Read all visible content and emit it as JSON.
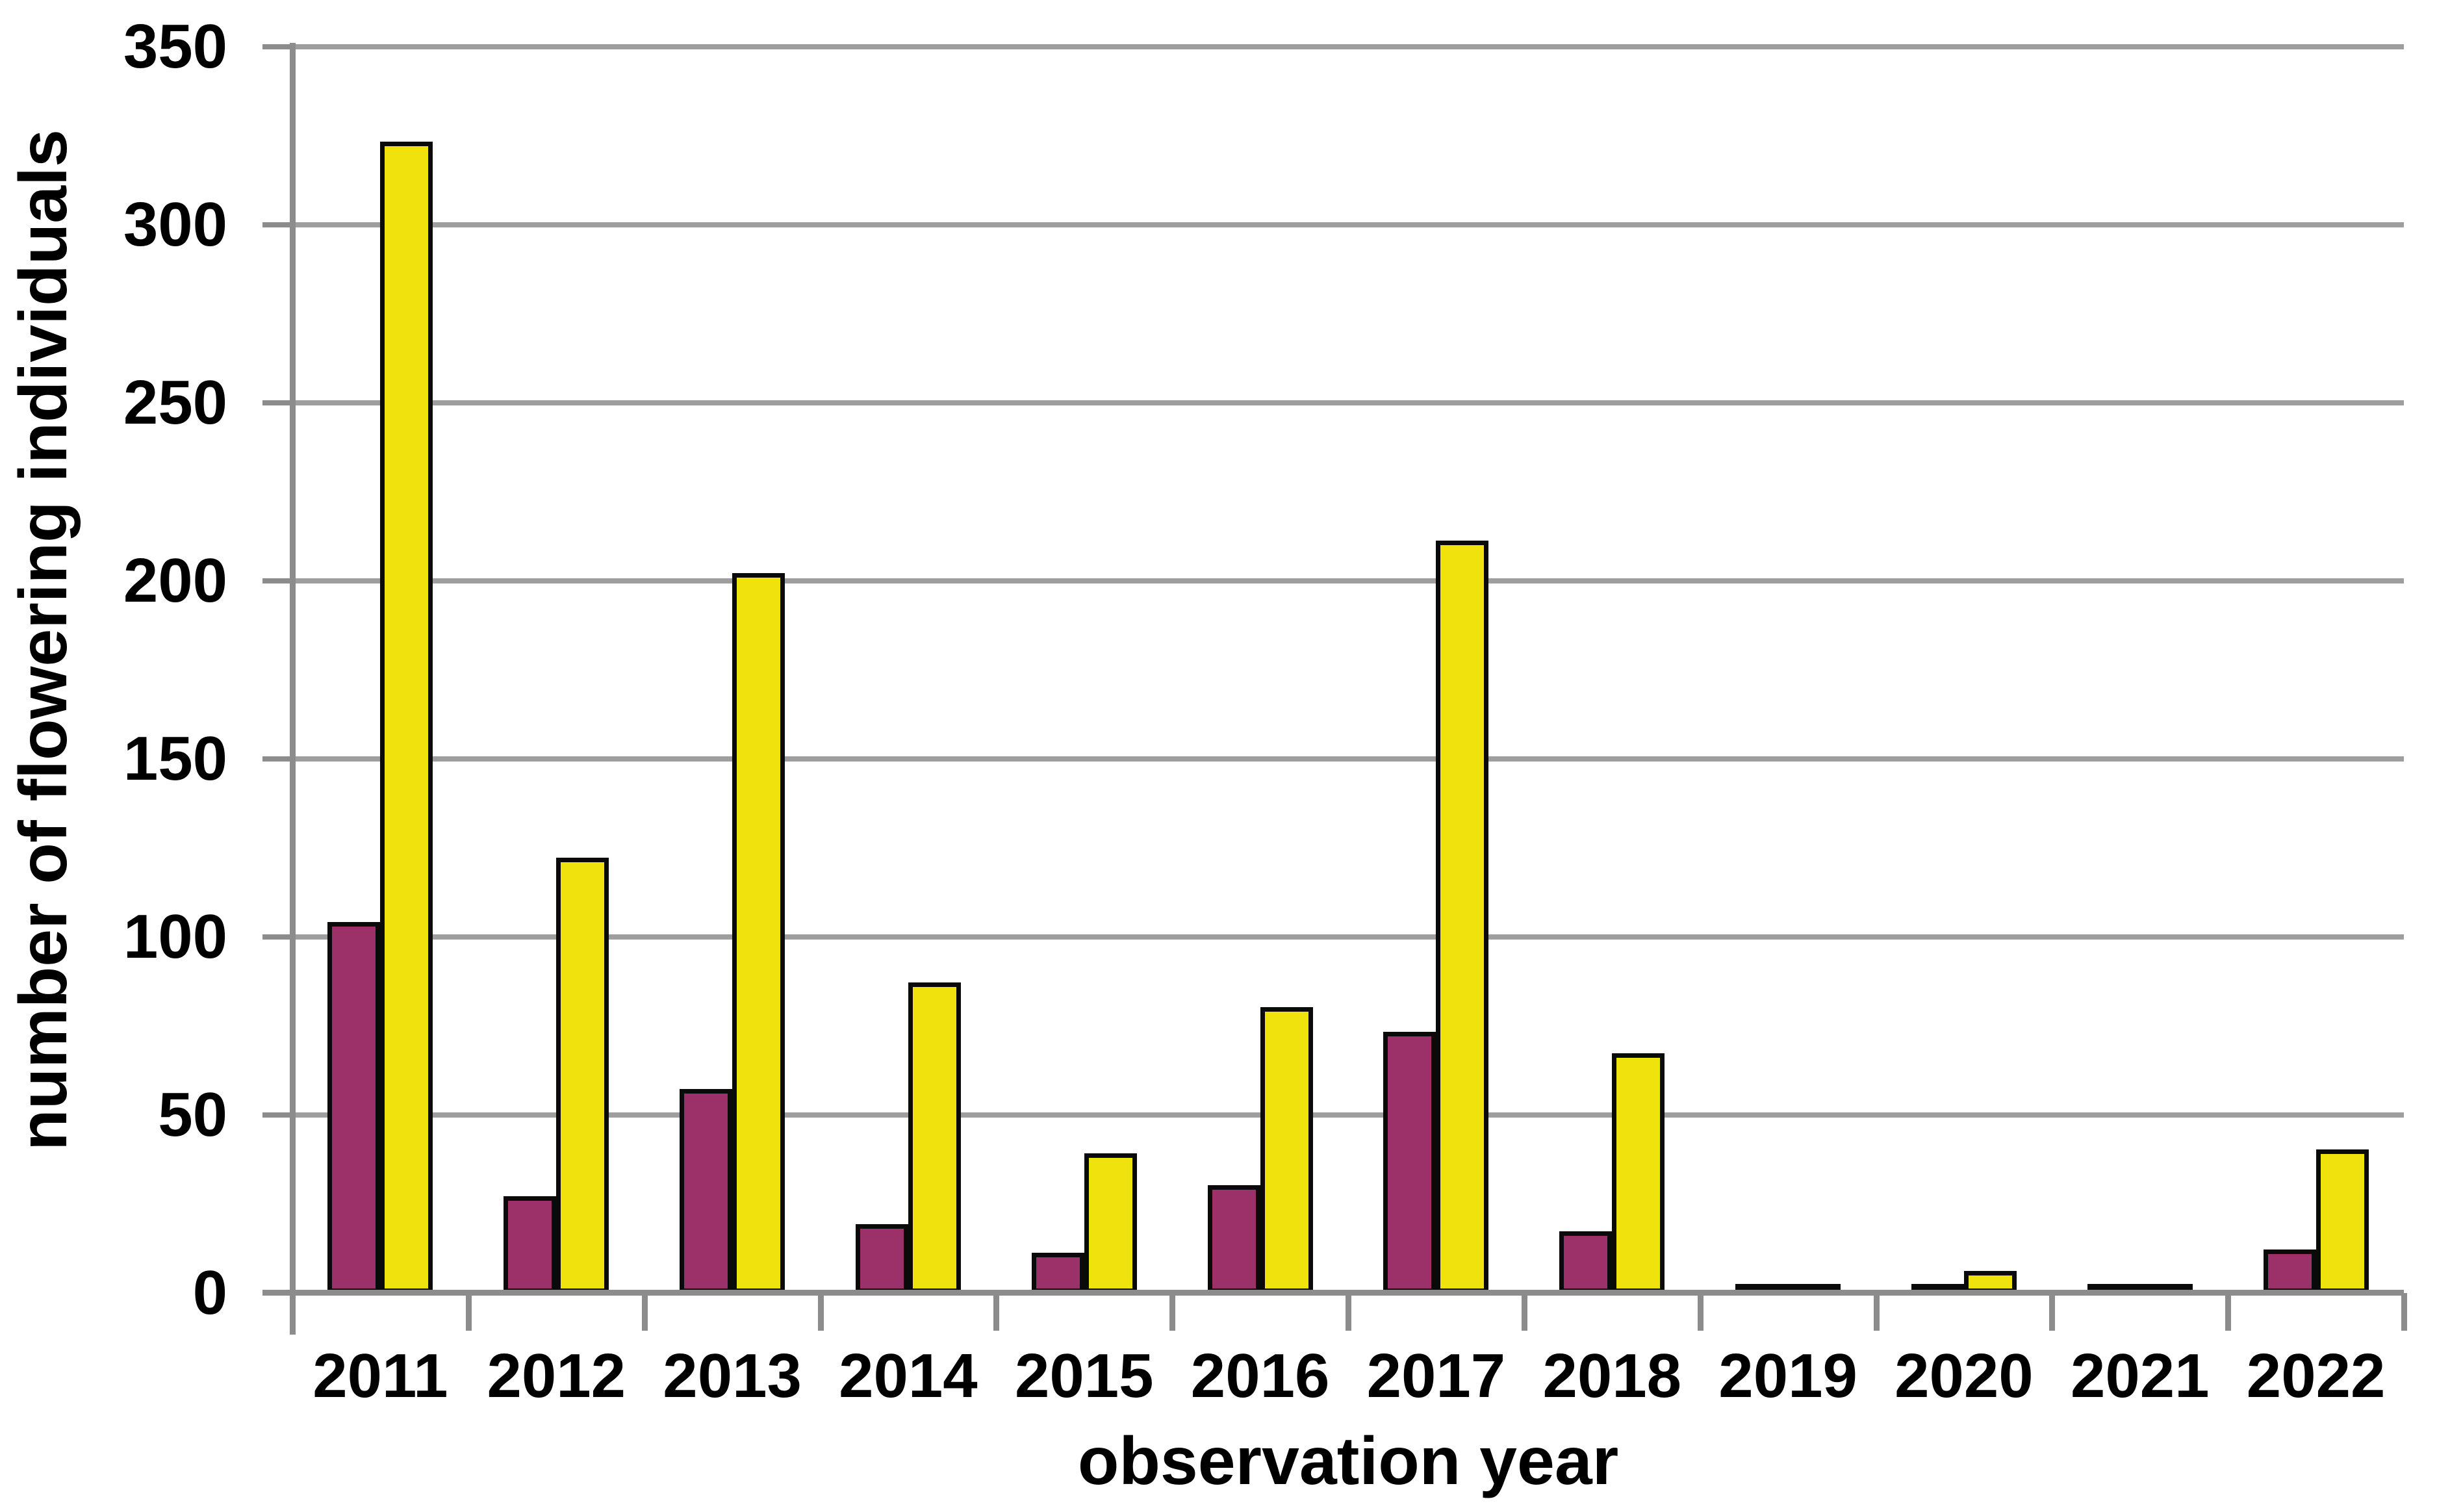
{
  "chart_data": {
    "type": "bar",
    "title": "",
    "xlabel": "observation year",
    "ylabel": "number of flowering individuals",
    "categories": [
      "2011",
      "2012",
      "2013",
      "2014",
      "2015",
      "2016",
      "2017",
      "2018",
      "2019",
      "2020",
      "2021",
      "2022"
    ],
    "series": [
      {
        "name": "maroon",
        "color": "#9C3169",
        "values": [
          103,
          26,
          56,
          18,
          10,
          29,
          72,
          16,
          1,
          1,
          1,
          11
        ]
      },
      {
        "name": "yellow",
        "color": "#EFE20D",
        "values": [
          322,
          121,
          201,
          86,
          38,
          79,
          210,
          66,
          1,
          5,
          1,
          39
        ]
      }
    ],
    "bar_border_color": "#0A0A0A",
    "ylim": [
      0,
      350
    ],
    "yticks": [
      0,
      50,
      100,
      150,
      200,
      250,
      300,
      350
    ],
    "grid": true,
    "legend": false,
    "gridline_color": "#9E9E9E",
    "axis_color": "#8C8C8C",
    "text_color": "#000000",
    "background": "#FFFFFF"
  }
}
